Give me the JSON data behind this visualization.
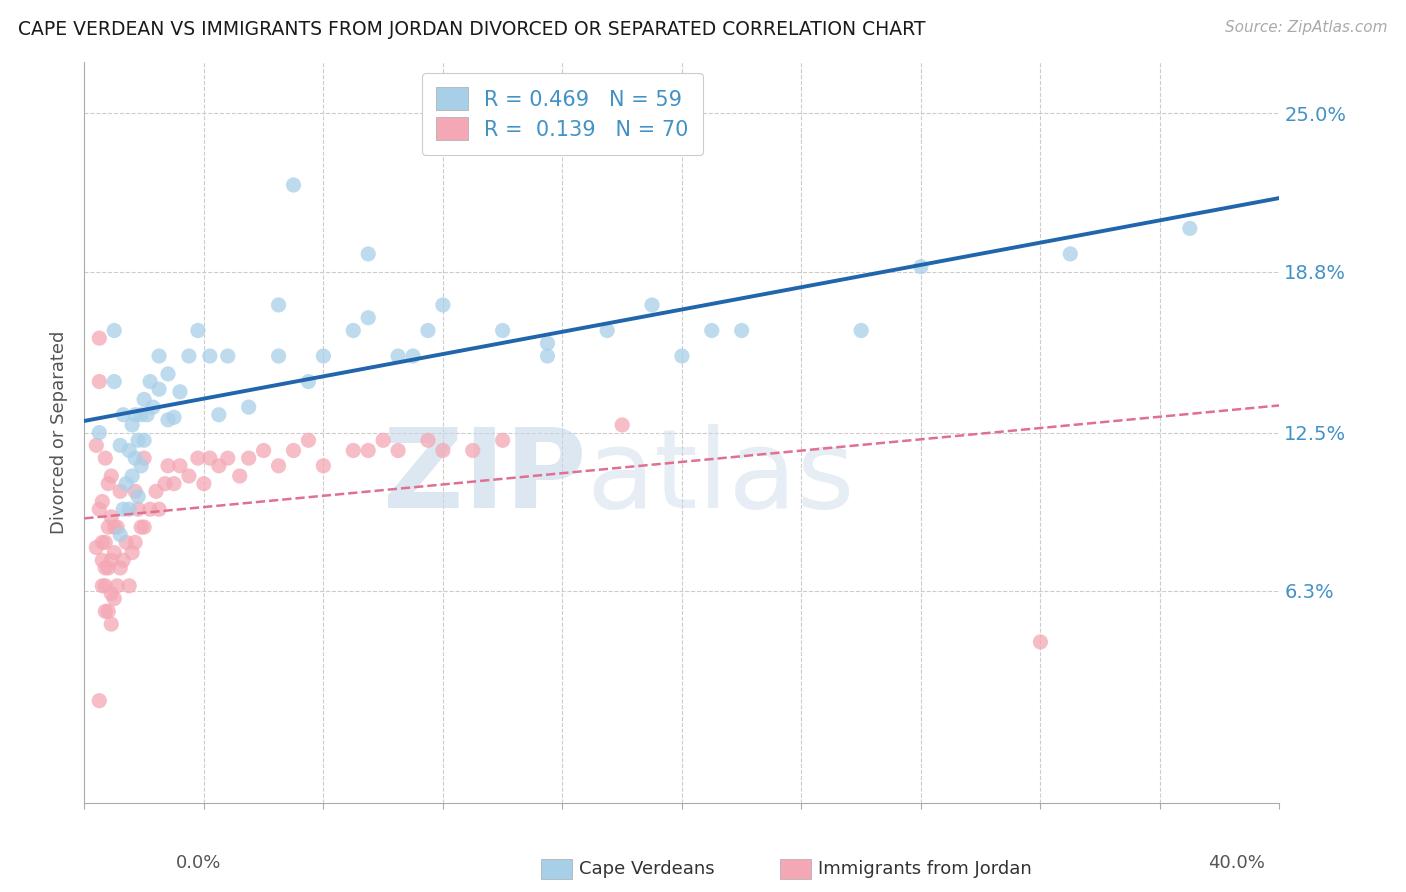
{
  "title": "CAPE VERDEAN VS IMMIGRANTS FROM JORDAN DIVORCED OR SEPARATED CORRELATION CHART",
  "source_text": "Source: ZipAtlas.com",
  "ylabel": "Divorced or Separated",
  "xmin": 0.0,
  "xmax": 0.4,
  "ymin": -0.02,
  "ymax": 0.27,
  "ytick_vals": [
    0.063,
    0.125,
    0.188,
    0.25
  ],
  "ytick_labels": [
    "6.3%",
    "12.5%",
    "18.8%",
    "25.0%"
  ],
  "legend_R1": "R = 0.469",
  "legend_N1": "N = 59",
  "legend_R2": "R =  0.139",
  "legend_N2": "N = 70",
  "color_blue": "#a8cfe8",
  "color_pink": "#f4a7b5",
  "color_blue_line": "#2166ac",
  "color_pink_line": "#e07090",
  "color_axis_text": "#4292c6",
  "watermark_zip": "ZIP",
  "watermark_atlas": "atlas",
  "cv_x": [
    0.005,
    0.01,
    0.01,
    0.012,
    0.012,
    0.013,
    0.013,
    0.014,
    0.015,
    0.015,
    0.016,
    0.016,
    0.017,
    0.017,
    0.018,
    0.018,
    0.019,
    0.019,
    0.02,
    0.02,
    0.021,
    0.022,
    0.023,
    0.025,
    0.025,
    0.028,
    0.028,
    0.03,
    0.032,
    0.035,
    0.038,
    0.042,
    0.048,
    0.055,
    0.065,
    0.07,
    0.075,
    0.08,
    0.09,
    0.095,
    0.105,
    0.11,
    0.115,
    0.12,
    0.14,
    0.155,
    0.175,
    0.19,
    0.2,
    0.21,
    0.22,
    0.26,
    0.28,
    0.33,
    0.37,
    0.045,
    0.065,
    0.095,
    0.155
  ],
  "cv_y": [
    0.125,
    0.145,
    0.165,
    0.085,
    0.12,
    0.095,
    0.132,
    0.105,
    0.095,
    0.118,
    0.108,
    0.128,
    0.115,
    0.132,
    0.1,
    0.122,
    0.112,
    0.132,
    0.122,
    0.138,
    0.132,
    0.145,
    0.135,
    0.142,
    0.155,
    0.13,
    0.148,
    0.131,
    0.141,
    0.155,
    0.165,
    0.155,
    0.155,
    0.135,
    0.155,
    0.222,
    0.145,
    0.155,
    0.165,
    0.195,
    0.155,
    0.155,
    0.165,
    0.175,
    0.165,
    0.155,
    0.165,
    0.175,
    0.155,
    0.165,
    0.165,
    0.165,
    0.19,
    0.195,
    0.205,
    0.132,
    0.175,
    0.17,
    0.16
  ],
  "jd_x": [
    0.004,
    0.005,
    0.005,
    0.006,
    0.006,
    0.006,
    0.007,
    0.007,
    0.007,
    0.007,
    0.008,
    0.008,
    0.008,
    0.009,
    0.009,
    0.009,
    0.009,
    0.01,
    0.01,
    0.01,
    0.011,
    0.011,
    0.012,
    0.012,
    0.013,
    0.014,
    0.015,
    0.016,
    0.017,
    0.017,
    0.018,
    0.019,
    0.02,
    0.02,
    0.022,
    0.024,
    0.025,
    0.027,
    0.028,
    0.03,
    0.032,
    0.035,
    0.038,
    0.04,
    0.042,
    0.045,
    0.048,
    0.052,
    0.055,
    0.06,
    0.065,
    0.07,
    0.075,
    0.08,
    0.09,
    0.095,
    0.1,
    0.105,
    0.115,
    0.12,
    0.13,
    0.14,
    0.18,
    0.32,
    0.004,
    0.005,
    0.006,
    0.007,
    0.008,
    0.009
  ],
  "jd_y": [
    0.12,
    0.145,
    0.162,
    0.065,
    0.082,
    0.098,
    0.055,
    0.072,
    0.082,
    0.115,
    0.055,
    0.072,
    0.105,
    0.05,
    0.075,
    0.092,
    0.108,
    0.06,
    0.078,
    0.088,
    0.065,
    0.088,
    0.072,
    0.102,
    0.075,
    0.082,
    0.065,
    0.078,
    0.082,
    0.102,
    0.095,
    0.088,
    0.088,
    0.115,
    0.095,
    0.102,
    0.095,
    0.105,
    0.112,
    0.105,
    0.112,
    0.108,
    0.115,
    0.105,
    0.115,
    0.112,
    0.115,
    0.108,
    0.115,
    0.118,
    0.112,
    0.118,
    0.122,
    0.112,
    0.118,
    0.118,
    0.122,
    0.118,
    0.122,
    0.118,
    0.118,
    0.122,
    0.128,
    0.043,
    0.08,
    0.095,
    0.075,
    0.065,
    0.088,
    0.062
  ],
  "jd_outlier_x": [
    0.005
  ],
  "jd_outlier_y": [
    0.02
  ]
}
